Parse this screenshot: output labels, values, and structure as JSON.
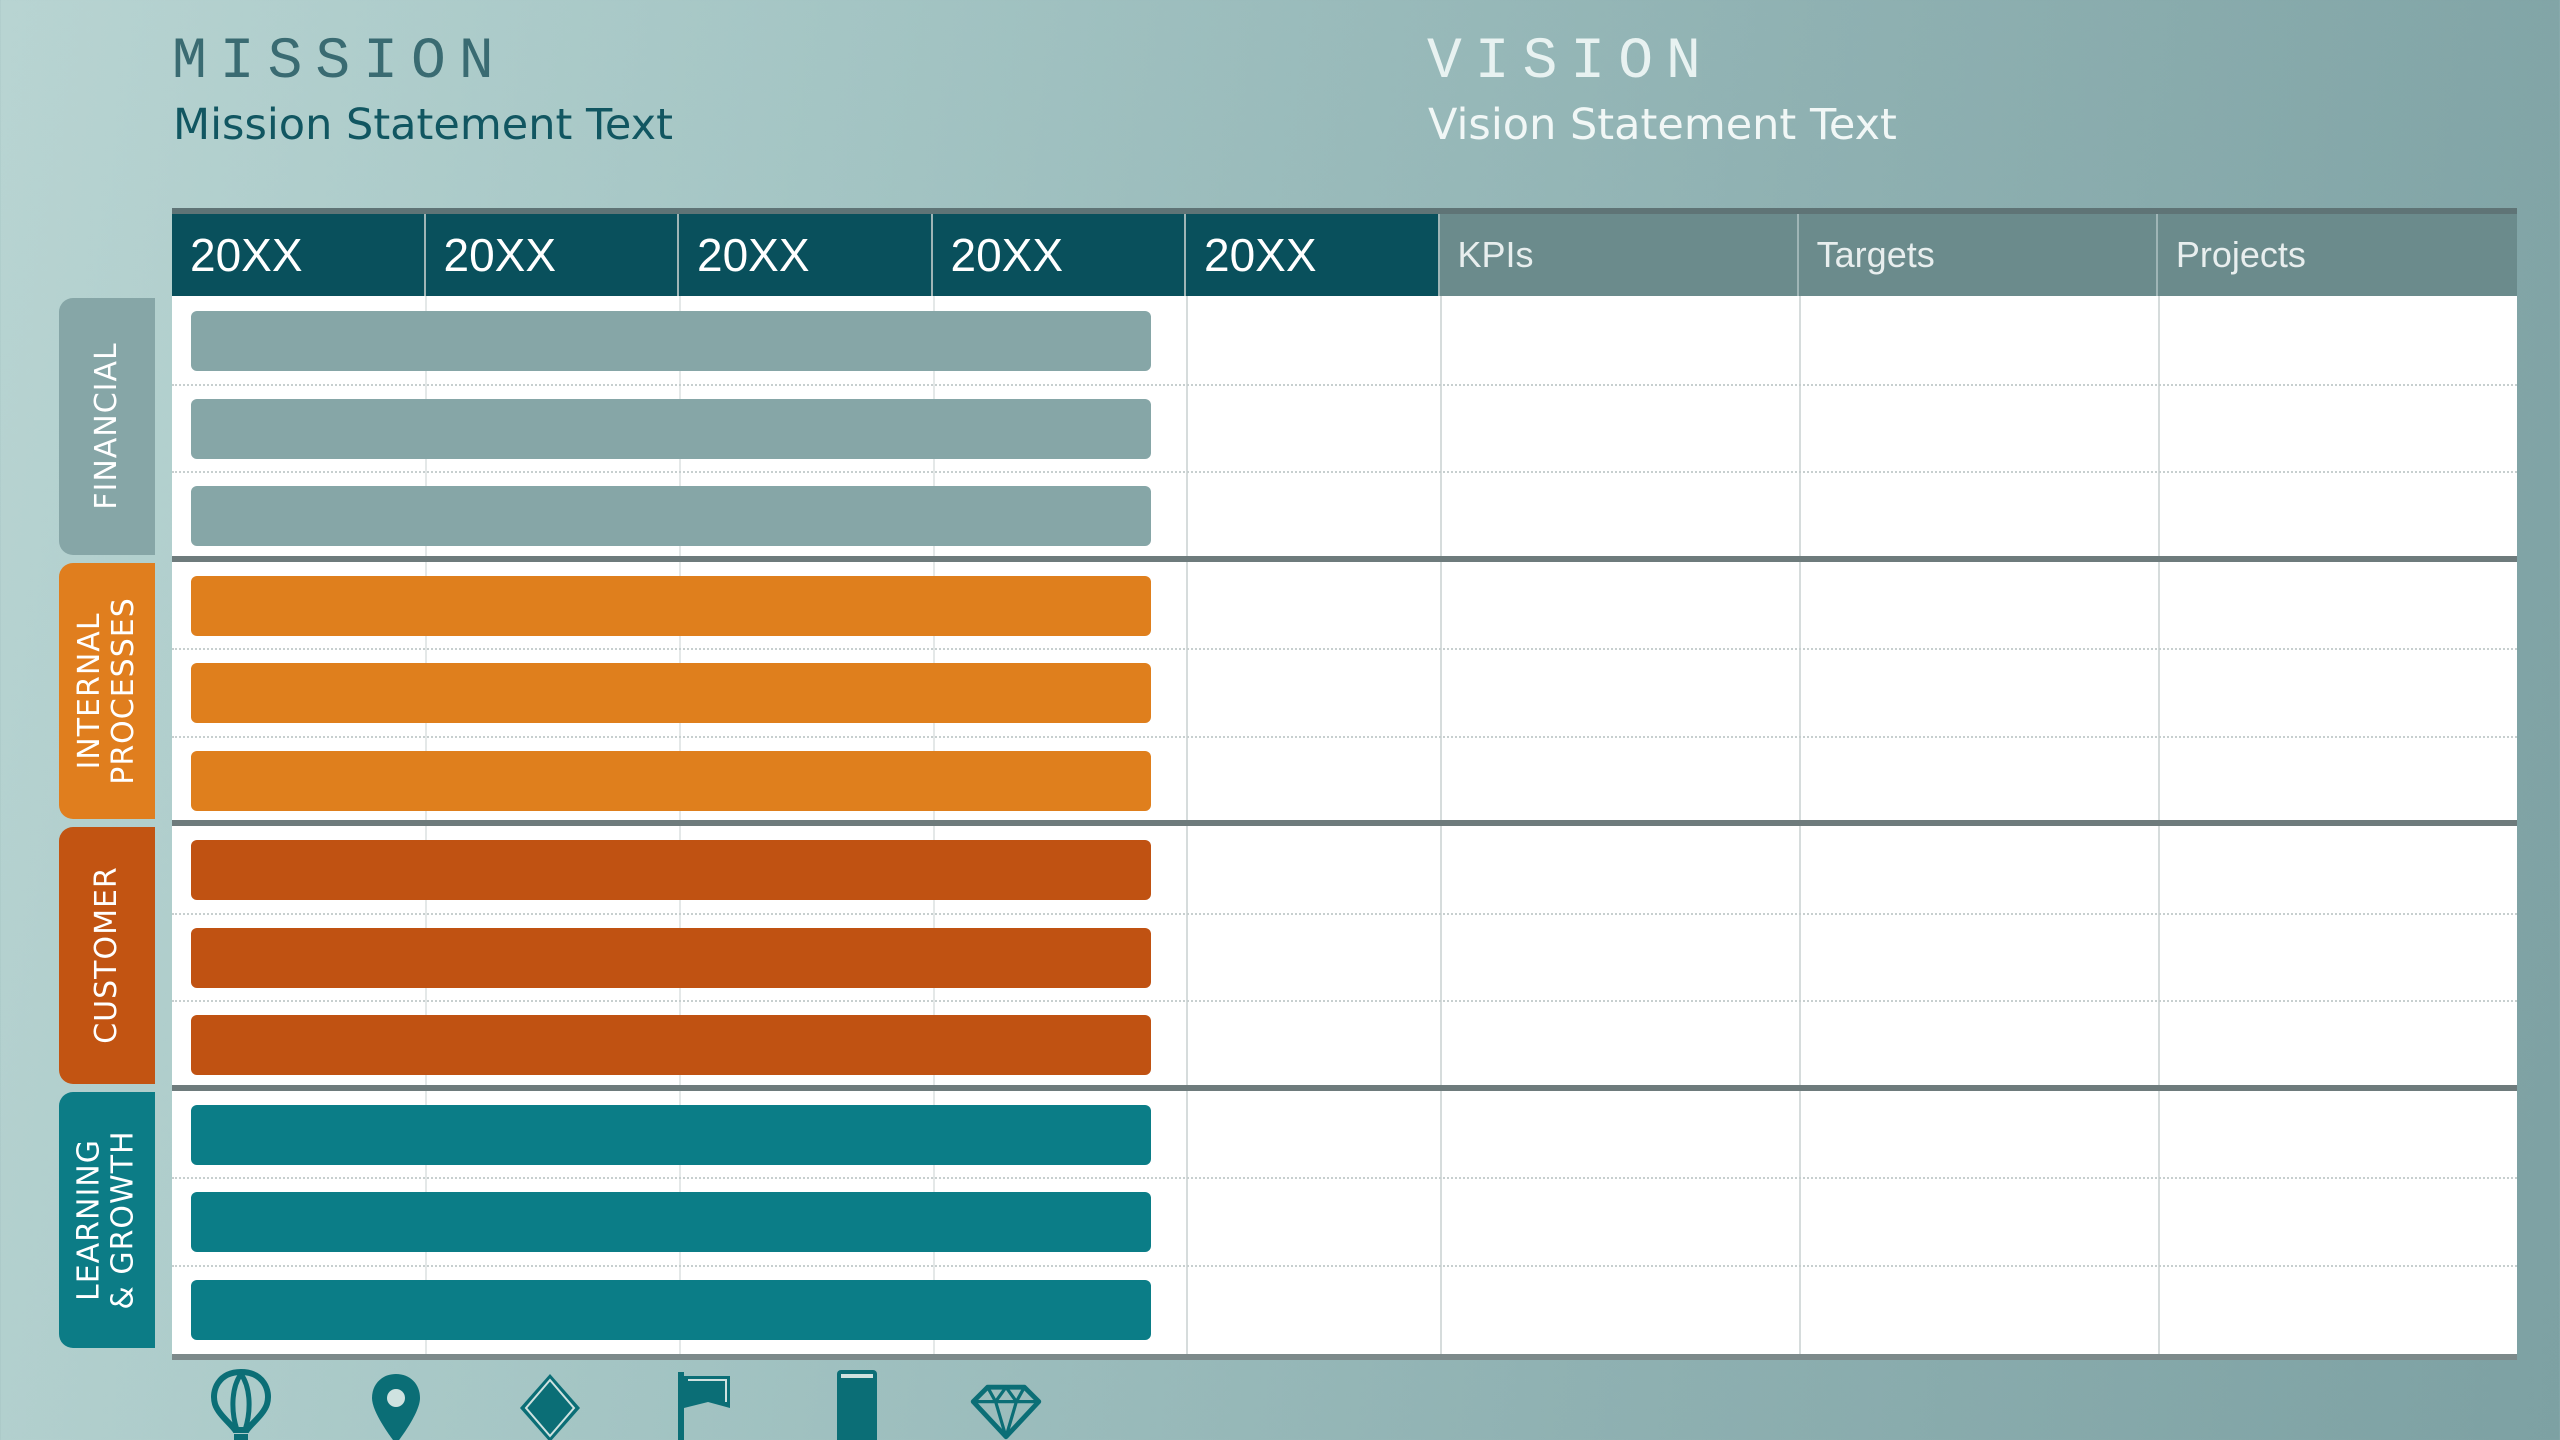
{
  "mission": {
    "heading": "MISSION",
    "text": "Mission Statement Text"
  },
  "vision": {
    "heading": "VISION",
    "text": "Vision Statement Text"
  },
  "header": {
    "years": [
      "20XX",
      "20XX",
      "20XX",
      "20XX",
      "20XX"
    ],
    "columns": [
      "KPIs",
      "Targets",
      "Projects"
    ]
  },
  "categories": [
    {
      "label_lines": [
        "FINANCIAL"
      ],
      "color": "#86a6a7",
      "bar_color": "#86a6a7",
      "bars": 3
    },
    {
      "label_lines": [
        "INTERNAL",
        "PROCESSES"
      ],
      "color": "#e07e1e",
      "bar_color": "#df7f1d",
      "bars": 3
    },
    {
      "label_lines": [
        "CUSTOMER"
      ],
      "color": "#c25412",
      "bar_color": "#c05212",
      "bars": 3
    },
    {
      "label_lines": [
        "LEARNING",
        "& GROWTH"
      ],
      "color": "#0c7c86",
      "bar_color": "#0b7d87",
      "bars": 3
    }
  ],
  "colors": {
    "header_year": "#09505c",
    "header_meta": "#6b8b8c",
    "icon": "#0b6e76"
  },
  "icons": [
    "hot-air-balloon-icon",
    "map-pin-icon",
    "diamond-icon",
    "flag-icon",
    "bookmark-icon",
    "gem-icon"
  ]
}
